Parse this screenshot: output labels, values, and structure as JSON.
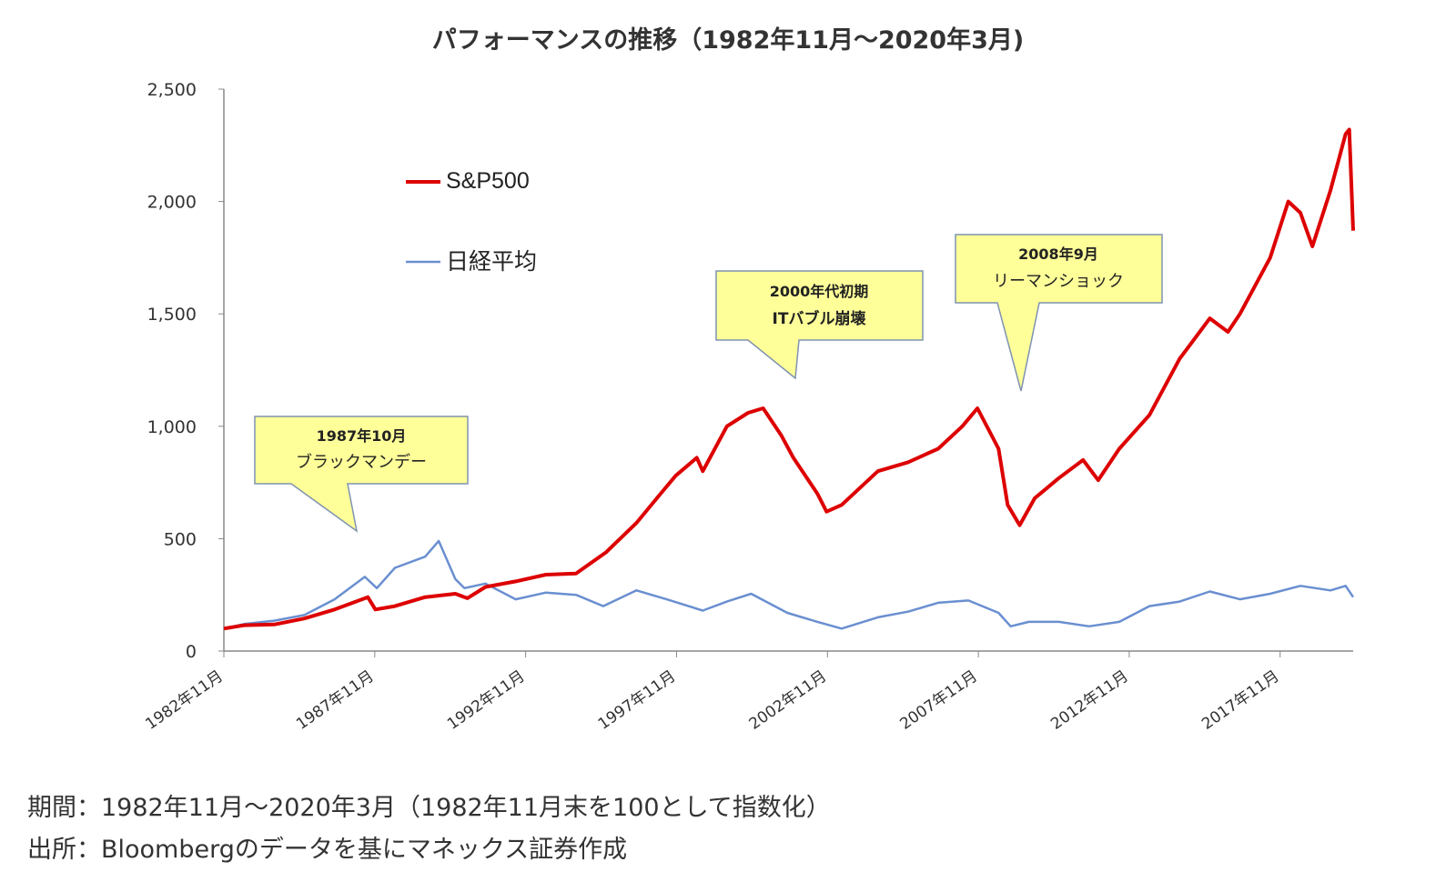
{
  "title": "パフォーマンスの推移（1982年11月〜2020年3月)",
  "footnotes": {
    "period": "期間：1982年11月〜2020年3月（1982年11月末を100として指数化）",
    "source": "出所：Bloombergのデータを基にマネックス証券作成"
  },
  "colors": {
    "sp500": "#dd0000",
    "nikkei": "#6a8fd0",
    "callout_fill": "#ffff99",
    "callout_border": "#7f93b0"
  },
  "chart_data": {
    "type": "line",
    "x_unit": "year (decimal)",
    "xlim": [
      1982.83,
      2020.25
    ],
    "ylim": [
      0,
      2500
    ],
    "x_tick_values": [
      1982.83,
      1987.83,
      1992.83,
      1997.83,
      2002.83,
      2007.83,
      2012.83,
      2017.83
    ],
    "x_tick_labels": [
      "1982年11月",
      "1987年11月",
      "1992年11月",
      "1997年11月",
      "2002年11月",
      "2007年11月",
      "2012年11月",
      "2017年11月"
    ],
    "y_tick_values": [
      0,
      500,
      1000,
      1500,
      2000,
      2500
    ],
    "y_tick_labels": [
      "0",
      "500",
      "1,000",
      "1,500",
      "2,000",
      "2,500"
    ],
    "legend": [
      "S&P500",
      "日経平均"
    ],
    "series": [
      {
        "name": "S&P500",
        "color": "#dd0000",
        "x": [
          1982.83,
          1983.5,
          1984.5,
          1985.5,
          1986.5,
          1987.6,
          1987.85,
          1988.5,
          1989.5,
          1990.5,
          1990.9,
          1991.5,
          1992.5,
          1993.5,
          1994.5,
          1995.5,
          1996.5,
          1997.3,
          1997.8,
          1998.5,
          1998.7,
          1999.5,
          2000.2,
          2000.7,
          2001.3,
          2001.7,
          2002.5,
          2002.8,
          2003.3,
          2004.5,
          2005.5,
          2006.5,
          2007.3,
          2007.8,
          2008.5,
          2008.8,
          2009.2,
          2009.7,
          2010.5,
          2011.3,
          2011.8,
          2012.5,
          2013.5,
          2014.5,
          2015.5,
          2016.1,
          2016.5,
          2017.5,
          2018.1,
          2018.5,
          2018.9,
          2019.5,
          2020.0,
          2020.12,
          2020.25
        ],
        "values": [
          100,
          115,
          118,
          145,
          185,
          240,
          185,
          200,
          240,
          255,
          235,
          285,
          310,
          340,
          345,
          440,
          570,
          700,
          780,
          860,
          800,
          1000,
          1060,
          1080,
          960,
          860,
          700,
          620,
          650,
          800,
          840,
          900,
          1000,
          1080,
          900,
          650,
          560,
          680,
          770,
          850,
          760,
          900,
          1050,
          1300,
          1480,
          1420,
          1500,
          1750,
          2000,
          1950,
          1800,
          2050,
          2300,
          2320,
          1870
        ]
      },
      {
        "name": "日経平均",
        "color": "#6a8fd0",
        "x": [
          1982.83,
          1983.5,
          1984.5,
          1985.5,
          1986.5,
          1987.5,
          1987.9,
          1988.5,
          1989.5,
          1989.95,
          1990.5,
          1990.8,
          1991.5,
          1992.5,
          1993.5,
          1994.5,
          1995.4,
          1996.5,
          1997.5,
          1998.7,
          1999.5,
          2000.3,
          2001.5,
          2002.5,
          2003.3,
          2004.5,
          2005.5,
          2006.5,
          2007.5,
          2008.5,
          2008.9,
          2009.5,
          2010.5,
          2011.5,
          2012.5,
          2013.5,
          2014.5,
          2015.5,
          2016.5,
          2017.5,
          2018.5,
          2019.5,
          2020.0,
          2020.25
        ],
        "values": [
          100,
          120,
          135,
          160,
          230,
          330,
          280,
          370,
          420,
          490,
          320,
          280,
          300,
          230,
          260,
          250,
          200,
          270,
          230,
          180,
          220,
          255,
          170,
          130,
          100,
          150,
          175,
          215,
          225,
          170,
          110,
          130,
          130,
          110,
          130,
          200,
          220,
          265,
          230,
          255,
          290,
          270,
          290,
          240
        ]
      }
    ],
    "annotations": [
      {
        "lines": [
          "1987年10月",
          "ブラックマンデー"
        ]
      },
      {
        "lines": [
          "2000年代初期",
          "ITバブル崩壊"
        ]
      },
      {
        "lines": [
          "2008年9月",
          "リーマンショック"
        ]
      }
    ]
  }
}
